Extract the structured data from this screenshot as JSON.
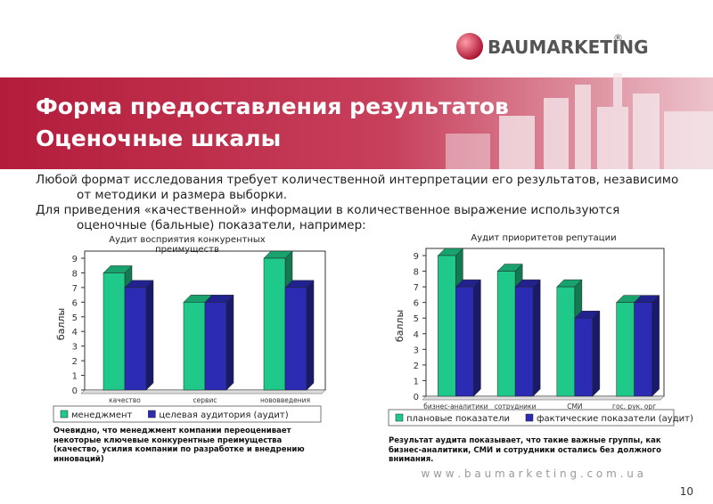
{
  "logo": {
    "name": "BAUMARKETING",
    "mark": "®"
  },
  "header": {
    "title": "Форма предоставления результатов",
    "subtitle": "Оценочные шкалы"
  },
  "body": [
    "Любой формат исследования требует количественной интерпретации его результатов, независимо от методики и размера выборки.",
    "Для приведения «качественной» информации в количественное выражение используются оценочные (бальные) показатели, например:"
  ],
  "chart_data": [
    {
      "type": "bar",
      "title": "Аудит восприятия конкурентных преимуществ",
      "y_label": "баллы",
      "categories": [
        "качество",
        "сервис",
        "нововведения"
      ],
      "series": [
        {
          "name": "менеджмент",
          "color": "#1fc98a",
          "values": [
            8,
            6,
            9
          ]
        },
        {
          "name": "целевая аудитория (аудит)",
          "color": "#2b2bb3",
          "values": [
            7,
            6,
            7
          ]
        }
      ],
      "ylim": [
        0,
        9
      ],
      "yticks": [
        0,
        1,
        2,
        3,
        4,
        5,
        6,
        7,
        8,
        9
      ],
      "grid": false,
      "caption": "Очевидно, что менеджмент компании переоценивает некоторые ключевые конкурентные преимущества (качество, усилия компании по разработке и внедрению инноваций)"
    },
    {
      "type": "bar",
      "title": "Аудит приоритетов репутации",
      "y_label": "баллы",
      "categories": [
        "бизнес-аналитики",
        "сотрудники",
        "СМИ",
        "гос. рук. орг"
      ],
      "series": [
        {
          "name": "плановые показатели",
          "color": "#1fc98a",
          "values": [
            9,
            8,
            7,
            6
          ]
        },
        {
          "name": "фактические показатели (аудит)",
          "color": "#2b2bb3",
          "values": [
            7,
            7,
            5,
            6
          ]
        }
      ],
      "ylim": [
        0,
        9
      ],
      "yticks": [
        0,
        1,
        2,
        3,
        4,
        5,
        6,
        7,
        8,
        9
      ],
      "grid": false,
      "caption": "Результат аудита показывает, что такие важные группы, как бизнес-аналитики, СМИ и сотрудники остались без должного внимания."
    }
  ],
  "footer": {
    "url": "w w w . b a u m a r k e t i n g . c o m . u a",
    "page": "10"
  }
}
